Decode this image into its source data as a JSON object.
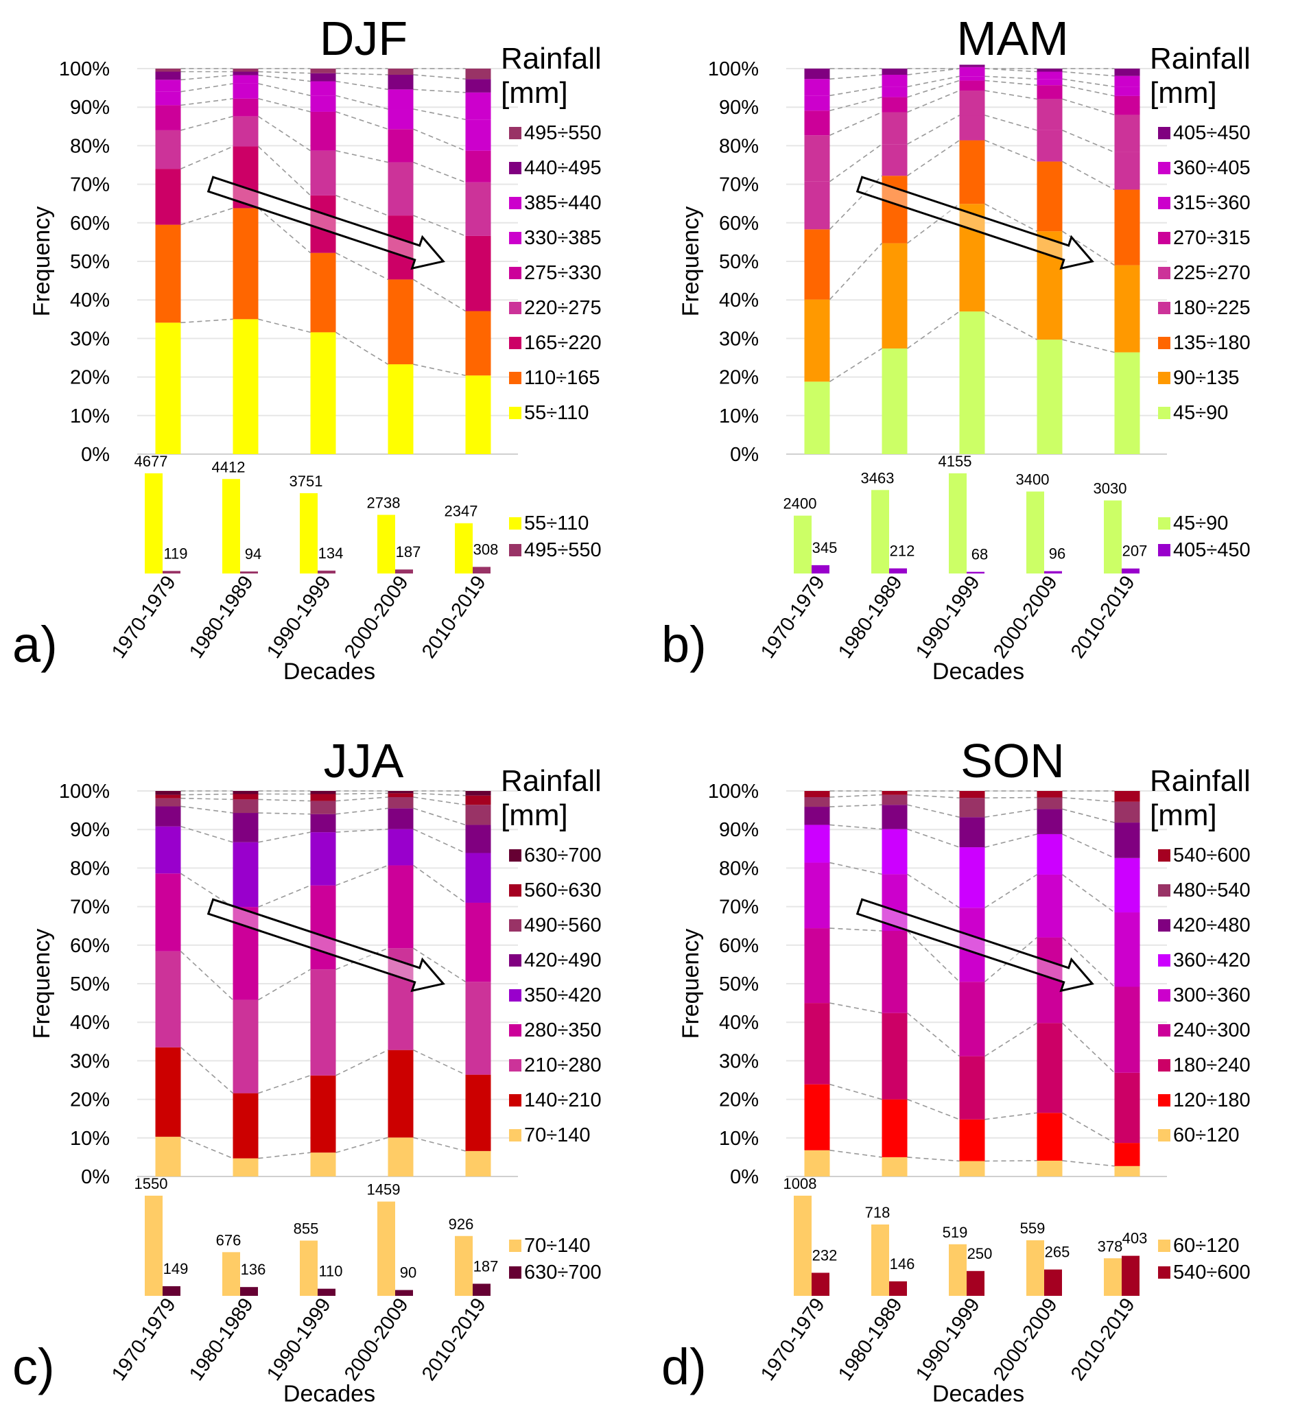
{
  "figure": {
    "y_axis_label": "Frequency",
    "x_axis_label": "Decades",
    "legend_title_line1": "Rainfall",
    "legend_title_line2": "[mm]",
    "y_ticks": [
      "0%",
      "10%",
      "20%",
      "30%",
      "40%",
      "50%",
      "60%",
      "70%",
      "80%",
      "90%",
      "100%"
    ]
  },
  "chart_data": [
    {
      "panel": "a)",
      "type": "bar",
      "stacked": true,
      "title": "DJF",
      "xlabel": "Decades",
      "ylabel": "Frequency",
      "ylim": [
        0,
        100
      ],
      "categories": [
        "1970-1979",
        "1980-1989",
        "1990-1999",
        "2000-2009",
        "2010-2019"
      ],
      "series": [
        {
          "name": "55÷110",
          "color": "#FFFF00",
          "values": [
            34.1,
            35.0,
            31.6,
            23.3,
            20.4
          ]
        },
        {
          "name": "110÷165",
          "color": "#FF6600",
          "values": [
            25.4,
            28.8,
            20.6,
            22.0,
            16.7
          ]
        },
        {
          "name": "165÷220",
          "color": "#CC0066",
          "values": [
            14.5,
            16.0,
            14.9,
            16.6,
            19.5
          ]
        },
        {
          "name": "220÷275",
          "color": "#CC3399",
          "values": [
            10.0,
            7.8,
            11.6,
            13.8,
            13.9
          ]
        },
        {
          "name": "275÷330",
          "color": "#CC0099",
          "values": [
            6.5,
            4.6,
            10.1,
            8.6,
            8.2
          ]
        },
        {
          "name": "330÷385",
          "color": "#CC00CC",
          "values": [
            3.5,
            3.9,
            4.2,
            5.2,
            8.1
          ]
        },
        {
          "name": "385÷440",
          "color": "#CC00CC",
          "values": [
            3.1,
            2.2,
            3.7,
            5.1,
            7.0
          ]
        },
        {
          "name": "440÷495",
          "color": "#800080",
          "values": [
            2.1,
            0.9,
            2.1,
            3.8,
            3.5
          ]
        },
        {
          "name": "495÷550",
          "color": "#993366",
          "values": [
            0.8,
            0.8,
            1.2,
            1.6,
            2.7
          ]
        }
      ],
      "legend_order": [
        "495÷550",
        "440÷495",
        "385÷440",
        "330÷385",
        "275÷330",
        "220÷275",
        "165÷220",
        "110÷165",
        "55÷110"
      ],
      "legend_placement": "right",
      "trend_arrow": "down-right",
      "counts": {
        "type": "bar",
        "series": [
          {
            "name": "55÷110",
            "color": "#FFFF00",
            "values": [
              4677,
              4412,
              3751,
              2738,
              2347
            ]
          },
          {
            "name": "495÷550",
            "color": "#993366",
            "values": [
              119,
              94,
              134,
              187,
              308
            ]
          }
        ]
      }
    },
    {
      "panel": "b)",
      "type": "bar",
      "stacked": true,
      "title": "MAM",
      "xlabel": "Decades",
      "ylabel": "Frequency",
      "ylim": [
        0,
        100
      ],
      "categories": [
        "1970-1979",
        "1980-1989",
        "1990-1999",
        "2000-2009",
        "2010-2019"
      ],
      "series": [
        {
          "name": "45÷90",
          "color": "#CCFF66",
          "values": [
            18.8,
            27.4,
            37.0,
            29.7,
            26.4
          ]
        },
        {
          "name": "90÷135",
          "color": "#FF9900",
          "values": [
            21.3,
            27.3,
            27.9,
            28.1,
            22.6
          ]
        },
        {
          "name": "135÷180",
          "color": "#FF6600",
          "values": [
            18.2,
            17.5,
            16.5,
            18.1,
            19.6
          ]
        },
        {
          "name": "180÷225",
          "color": "#CC3399",
          "values": [
            12.4,
            8.2,
            6.5,
            8.1,
            9.7
          ]
        },
        {
          "name": "225÷270",
          "color": "#CC3399",
          "values": [
            12.0,
            8.3,
            6.4,
            8.1,
            9.7
          ]
        },
        {
          "name": "270÷315",
          "color": "#CC0099",
          "values": [
            6.4,
            3.9,
            2.6,
            3.6,
            4.9
          ]
        },
        {
          "name": "315÷360",
          "color": "#CC00CC",
          "values": [
            3.9,
            2.7,
            1.1,
            1.6,
            2.4
          ]
        },
        {
          "name": "360÷405",
          "color": "#CC00CC",
          "values": [
            4.3,
            3.1,
            2.4,
            1.9,
            2.8
          ]
        },
        {
          "name": "405÷450",
          "color": "#800080",
          "values": [
            2.7,
            1.6,
            0.6,
            0.8,
            1.9
          ]
        }
      ],
      "legend_order": [
        "405÷450",
        "360÷405",
        "315÷360",
        "270÷315",
        "225÷270",
        "180÷225",
        "135÷180",
        "90÷135",
        "45÷90"
      ],
      "legend_placement": "right",
      "trend_arrow": "down-right",
      "counts": {
        "type": "bar",
        "series": [
          {
            "name": "45÷90",
            "color": "#CCFF66",
            "values": [
              2400,
              3463,
              4155,
              3400,
              3030
            ]
          },
          {
            "name": "405÷450",
            "color": "#9900CC",
            "values": [
              345,
              212,
              68,
              96,
              207
            ]
          }
        ]
      }
    },
    {
      "panel": "c)",
      "type": "bar",
      "stacked": true,
      "title": "JJA",
      "xlabel": "Decades",
      "ylabel": "Frequency",
      "ylim": [
        0,
        100
      ],
      "categories": [
        "1970-1979",
        "1980-1989",
        "1990-1999",
        "2000-2009",
        "2010-2019"
      ],
      "series": [
        {
          "name": "70÷140",
          "color": "#FFCC66",
          "values": [
            10.3,
            4.7,
            6.2,
            10.1,
            6.6
          ]
        },
        {
          "name": "140÷210",
          "color": "#CC0000",
          "values": [
            23.2,
            16.9,
            20.0,
            22.7,
            19.8
          ]
        },
        {
          "name": "210÷280",
          "color": "#CC3399",
          "values": [
            24.9,
            24.2,
            27.5,
            26.4,
            24.1
          ]
        },
        {
          "name": "280÷350",
          "color": "#CC0099",
          "values": [
            20.2,
            24.1,
            21.8,
            21.5,
            20.5
          ]
        },
        {
          "name": "350÷420",
          "color": "#9900CC",
          "values": [
            12.2,
            16.8,
            13.8,
            9.4,
            12.9
          ]
        },
        {
          "name": "420÷490",
          "color": "#800080",
          "values": [
            5.2,
            7.6,
            4.7,
            5.4,
            7.3
          ]
        },
        {
          "name": "490÷560",
          "color": "#993366",
          "values": [
            2.1,
            3.5,
            3.4,
            2.9,
            5.2
          ]
        },
        {
          "name": "560÷630",
          "color": "#A50021",
          "values": [
            0.9,
            1.4,
            1.8,
            1.0,
            2.4
          ]
        },
        {
          "name": "630÷700",
          "color": "#660033",
          "values": [
            1.0,
            0.8,
            0.8,
            0.6,
            1.2
          ]
        }
      ],
      "legend_order": [
        "630÷700",
        "560÷630",
        "490÷560",
        "420÷490",
        "350÷420",
        "280÷350",
        "210÷280",
        "140÷210",
        "70÷140"
      ],
      "legend_placement": "right",
      "trend_arrow": "down-right",
      "counts": {
        "type": "bar",
        "series": [
          {
            "name": "70÷140",
            "color": "#FFCC66",
            "values": [
              1550,
              676,
              855,
              1459,
              926
            ]
          },
          {
            "name": "630÷700",
            "color": "#660033",
            "values": [
              149,
              136,
              110,
              90,
              187
            ]
          }
        ]
      }
    },
    {
      "panel": "d)",
      "type": "bar",
      "stacked": true,
      "title": "SON",
      "xlabel": "Decades",
      "ylabel": "Frequency",
      "ylim": [
        0,
        100
      ],
      "categories": [
        "1970-1979",
        "1980-1989",
        "1990-1999",
        "2000-2009",
        "2010-2019"
      ],
      "series": [
        {
          "name": "60÷120",
          "color": "#FFCC66",
          "values": [
            6.8,
            5.0,
            4.0,
            4.1,
            2.7
          ]
        },
        {
          "name": "120÷180",
          "color": "#FF0000",
          "values": [
            17.1,
            15.0,
            10.8,
            12.4,
            6.0
          ]
        },
        {
          "name": "180÷240",
          "color": "#CC0066",
          "values": [
            21.1,
            22.4,
            16.4,
            23.3,
            18.2
          ]
        },
        {
          "name": "240÷300",
          "color": "#CC0099",
          "values": [
            19.4,
            21.3,
            19.3,
            22.2,
            22.3
          ]
        },
        {
          "name": "300÷360",
          "color": "#CC00CC",
          "values": [
            17.0,
            14.7,
            19.2,
            16.3,
            19.3
          ]
        },
        {
          "name": "360÷420",
          "color": "#CC00FF",
          "values": [
            9.8,
            11.7,
            15.7,
            10.5,
            14.1
          ]
        },
        {
          "name": "420÷480",
          "color": "#800080",
          "values": [
            4.7,
            6.3,
            7.8,
            6.5,
            9.2
          ]
        },
        {
          "name": "480÷540",
          "color": "#993366",
          "values": [
            2.5,
            2.6,
            5.0,
            3.0,
            5.4
          ]
        },
        {
          "name": "540÷600",
          "color": "#A50021",
          "values": [
            1.6,
            1.0,
            1.8,
            1.7,
            2.8
          ]
        }
      ],
      "legend_order": [
        "540÷600",
        "480÷540",
        "420÷480",
        "360÷420",
        "300÷360",
        "240÷300",
        "180÷240",
        "120÷180",
        "60÷120"
      ],
      "legend_placement": "right",
      "trend_arrow": "down-right",
      "counts": {
        "type": "bar",
        "series": [
          {
            "name": "60÷120",
            "color": "#FFCC66",
            "values": [
              1008,
              718,
              519,
              559,
              378
            ]
          },
          {
            "name": "540÷600",
            "color": "#A50021",
            "values": [
              232,
              146,
              250,
              265,
              403
            ]
          }
        ]
      }
    }
  ]
}
